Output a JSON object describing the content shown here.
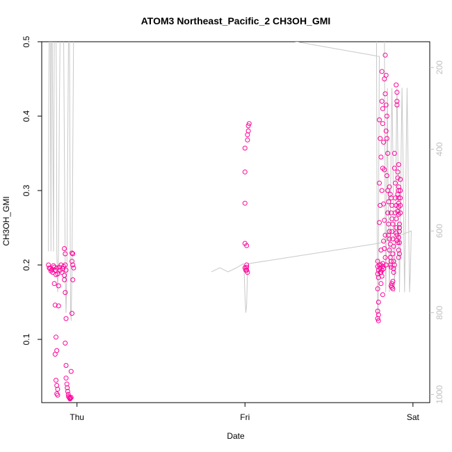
{
  "chart_data": {
    "type": "scatter",
    "title": "ATOM3 Northeast_Pacific_2 CH3OH_GMI",
    "xlabel": "Date",
    "ylabel": "CH3OH_GMI",
    "xlim": [
      -0.21,
      2.1
    ],
    "ylim": [
      0.015,
      0.5
    ],
    "x_ticks": [
      {
        "x": 0,
        "label": "Thu"
      },
      {
        "x": 1,
        "label": "Fri"
      },
      {
        "x": 2,
        "label": "Sat"
      }
    ],
    "y_ticks": [
      0.1,
      0.2,
      0.3,
      0.4,
      0.5
    ],
    "y2_ticks": [
      200,
      400,
      600,
      800,
      1000
    ],
    "y2_range": [
      137,
      1020
    ],
    "y2_color": "#bfbfbf",
    "point_color": "#ff0099",
    "line_color": "#c8c8c8",
    "grid": false,
    "series": [
      {
        "marker": "circle",
        "points": [
          [
            -0.17,
            0.2
          ],
          [
            -0.165,
            0.196
          ],
          [
            -0.16,
            0.195
          ],
          [
            -0.155,
            0.192
          ],
          [
            -0.15,
            0.194
          ],
          [
            -0.145,
            0.19
          ],
          [
            -0.14,
            0.199
          ],
          [
            -0.135,
            0.197
          ],
          [
            -0.13,
            0.193
          ],
          [
            -0.125,
            0.187
          ],
          [
            -0.12,
            0.196
          ],
          [
            -0.115,
            0.188
          ],
          [
            -0.135,
            0.175
          ],
          [
            -0.13,
            0.146
          ],
          [
            -0.125,
            0.103
          ],
          [
            -0.12,
            0.085
          ],
          [
            -0.13,
            0.08
          ],
          [
            -0.125,
            0.045
          ],
          [
            -0.12,
            0.038
          ],
          [
            -0.115,
            0.033
          ],
          [
            -0.12,
            0.027
          ],
          [
            -0.115,
            0.025
          ],
          [
            -0.11,
            0.145
          ],
          [
            -0.11,
            0.172
          ],
          [
            -0.105,
            0.197
          ],
          [
            -0.1,
            0.193
          ],
          [
            -0.095,
            0.2
          ],
          [
            -0.09,
            0.19
          ],
          [
            -0.085,
            0.195
          ],
          [
            -0.08,
            0.198
          ],
          [
            -0.075,
            0.186
          ],
          [
            -0.07,
            0.2
          ],
          [
            -0.065,
            0.193
          ],
          [
            -0.075,
            0.222
          ],
          [
            -0.07,
            0.215
          ],
          [
            -0.075,
            0.18
          ],
          [
            -0.07,
            0.163
          ],
          [
            -0.065,
            0.128
          ],
          [
            -0.07,
            0.095
          ],
          [
            -0.065,
            0.065
          ],
          [
            -0.065,
            0.048
          ],
          [
            -0.06,
            0.04
          ],
          [
            -0.058,
            0.035
          ],
          [
            -0.055,
            0.03
          ],
          [
            -0.052,
            0.026
          ],
          [
            -0.05,
            0.023
          ],
          [
            -0.045,
            0.022
          ],
          [
            -0.04,
            0.021
          ],
          [
            -0.035,
            0.022
          ],
          [
            -0.042,
            0.02
          ],
          [
            -0.035,
            0.057
          ],
          [
            -0.03,
            0.135
          ],
          [
            -0.025,
            0.18
          ],
          [
            -0.03,
            0.205
          ],
          [
            -0.025,
            0.2
          ],
          [
            -0.02,
            0.196
          ],
          [
            -0.025,
            0.215
          ],
          [
            -0.03,
            0.216
          ],
          [
            1.0,
            0.357
          ],
          [
            1.0,
            0.325
          ],
          [
            1.0,
            0.283
          ],
          [
            1.0,
            0.229
          ],
          [
            1.01,
            0.226
          ],
          [
            1.01,
            0.2
          ],
          [
            1.01,
            0.197
          ],
          [
            1.01,
            0.193
          ],
          [
            1.015,
            0.19
          ],
          [
            1.0,
            0.196
          ],
          [
            1.005,
            0.193
          ],
          [
            1.015,
            0.368
          ],
          [
            1.015,
            0.375
          ],
          [
            1.02,
            0.38
          ],
          [
            1.02,
            0.387
          ],
          [
            1.025,
            0.39
          ],
          [
            1.79,
            0.205
          ],
          [
            1.79,
            0.198
          ],
          [
            1.795,
            0.193
          ],
          [
            1.79,
            0.188
          ],
          [
            1.8,
            0.2
          ],
          [
            1.795,
            0.183
          ],
          [
            1.79,
            0.168
          ],
          [
            1.795,
            0.15
          ],
          [
            1.79,
            0.138
          ],
          [
            1.795,
            0.133
          ],
          [
            1.79,
            0.128
          ],
          [
            1.795,
            0.125
          ],
          [
            1.805,
            0.196
          ],
          [
            1.81,
            0.2
          ],
          [
            1.815,
            0.193
          ],
          [
            1.82,
            0.198
          ],
          [
            1.825,
            0.195
          ],
          [
            1.805,
            0.19
          ],
          [
            1.81,
            0.175
          ],
          [
            1.815,
            0.185
          ],
          [
            1.82,
            0.16
          ],
          [
            1.81,
            0.19
          ],
          [
            1.82,
            0.202
          ],
          [
            1.8,
            0.395
          ],
          [
            1.805,
            0.37
          ],
          [
            1.81,
            0.345
          ],
          [
            1.8,
            0.31
          ],
          [
            1.805,
            0.28
          ],
          [
            1.8,
            0.257
          ],
          [
            1.81,
            0.22
          ],
          [
            1.815,
            0.46
          ],
          [
            1.815,
            0.42
          ],
          [
            1.82,
            0.41
          ],
          [
            1.82,
            0.39
          ],
          [
            1.825,
            0.365
          ],
          [
            1.82,
            0.33
          ],
          [
            1.83,
            0.328
          ],
          [
            1.815,
            0.3
          ],
          [
            1.825,
            0.282
          ],
          [
            1.83,
            0.26
          ],
          [
            1.835,
            0.24
          ],
          [
            1.825,
            0.232
          ],
          [
            1.83,
            0.222
          ],
          [
            1.835,
            0.21
          ],
          [
            1.84,
            0.2
          ],
          [
            1.835,
            0.482
          ],
          [
            1.84,
            0.455
          ],
          [
            1.83,
            0.45
          ],
          [
            1.835,
            0.43
          ],
          [
            1.84,
            0.415
          ],
          [
            1.845,
            0.4
          ],
          [
            1.84,
            0.38
          ],
          [
            1.845,
            0.37
          ],
          [
            1.85,
            0.35
          ],
          [
            1.845,
            0.32
          ],
          [
            1.85,
            0.3
          ],
          [
            1.855,
            0.285
          ],
          [
            1.85,
            0.27
          ],
          [
            1.855,
            0.255
          ],
          [
            1.86,
            0.245
          ],
          [
            1.855,
            0.24
          ],
          [
            1.86,
            0.235
          ],
          [
            1.865,
            0.228
          ],
          [
            1.86,
            0.22
          ],
          [
            1.865,
            0.21
          ],
          [
            1.87,
            0.205
          ],
          [
            1.865,
            0.2
          ],
          [
            1.87,
            0.197
          ],
          [
            1.86,
            0.305
          ],
          [
            1.865,
            0.295
          ],
          [
            1.87,
            0.29
          ],
          [
            1.875,
            0.28
          ],
          [
            1.87,
            0.27
          ],
          [
            1.875,
            0.262
          ],
          [
            1.88,
            0.255
          ],
          [
            1.875,
            0.245
          ],
          [
            1.88,
            0.235
          ],
          [
            1.885,
            0.225
          ],
          [
            1.88,
            0.215
          ],
          [
            1.885,
            0.205
          ],
          [
            1.87,
            0.172
          ],
          [
            1.875,
            0.17
          ],
          [
            1.88,
            0.168
          ],
          [
            1.875,
            0.175
          ],
          [
            1.88,
            0.178
          ],
          [
            1.885,
            0.19
          ],
          [
            1.89,
            0.2
          ],
          [
            1.885,
            0.195
          ],
          [
            1.89,
            0.35
          ],
          [
            1.89,
            0.33
          ],
          [
            1.895,
            0.31
          ],
          [
            1.895,
            0.29
          ],
          [
            1.9,
            0.28
          ],
          [
            1.895,
            0.27
          ],
          [
            1.9,
            0.262
          ],
          [
            1.9,
            0.25
          ],
          [
            1.905,
            0.24
          ],
          [
            1.905,
            0.233
          ],
          [
            1.91,
            0.23
          ],
          [
            1.9,
            0.243
          ],
          [
            1.9,
            0.442
          ],
          [
            1.905,
            0.432
          ],
          [
            1.905,
            0.42
          ],
          [
            1.905,
            0.415
          ],
          [
            1.91,
            0.325
          ],
          [
            1.91,
            0.317
          ],
          [
            1.915,
            0.305
          ],
          [
            1.915,
            0.3
          ],
          [
            1.91,
            0.295
          ],
          [
            1.915,
            0.29
          ],
          [
            1.915,
            0.283
          ],
          [
            1.915,
            0.278
          ],
          [
            1.91,
            0.272
          ],
          [
            1.915,
            0.268
          ],
          [
            1.92,
            0.255
          ],
          [
            1.92,
            0.245
          ],
          [
            1.915,
            0.237
          ],
          [
            1.92,
            0.23
          ],
          [
            1.915,
            0.22
          ],
          [
            1.92,
            0.215
          ],
          [
            1.915,
            0.335
          ],
          [
            1.925,
            0.315
          ],
          [
            1.925,
            0.3
          ],
          [
            1.925,
            0.29
          ],
          [
            1.925,
            0.28
          ],
          [
            1.925,
            0.27
          ],
          [
            1.92,
            0.25
          ],
          [
            1.915,
            0.21
          ]
        ]
      },
      {
        "name": "",
        "axis": "right",
        "style": "line",
        "points": [
          [
            -0.17,
            650
          ],
          [
            -0.168,
            300
          ],
          [
            -0.165,
            100
          ],
          [
            -0.16,
            100
          ],
          [
            -0.158,
            300
          ],
          [
            -0.155,
            650
          ],
          [
            -0.152,
            100
          ],
          [
            -0.148,
            100
          ],
          [
            -0.145,
            300
          ],
          [
            -0.14,
            650
          ],
          [
            -0.135,
            100
          ],
          [
            -0.125,
            100
          ],
          [
            -0.122,
            300
          ],
          [
            -0.12,
            650
          ],
          [
            -0.115,
            750
          ],
          [
            -0.11,
            650
          ],
          [
            -0.105,
            300
          ],
          [
            -0.1,
            100
          ],
          [
            -0.08,
            100
          ],
          [
            -0.075,
            400
          ],
          [
            -0.07,
            700
          ],
          [
            -0.065,
            800
          ],
          [
            -0.06,
            700
          ],
          [
            -0.055,
            400
          ],
          [
            -0.05,
            100
          ],
          [
            -0.045,
            100
          ],
          [
            -0.043,
            300
          ],
          [
            -0.04,
            650
          ],
          [
            -0.038,
            800
          ],
          [
            -0.035,
            820
          ],
          [
            -0.03,
            700
          ],
          [
            -0.025,
            400
          ],
          [
            -0.02,
            100
          ],
          [
            -0.01,
            100
          ],
          [
            0.8,
            100
          ],
          [
            1.8,
            173
          ],
          [
            1.797,
            400
          ],
          [
            1.795,
            700
          ],
          [
            1.793,
            800
          ],
          [
            1.79,
            820
          ],
          [
            1.788,
            700
          ],
          [
            1.785,
            400
          ],
          [
            1.783,
            100
          ],
          [
            1.83,
            100
          ],
          [
            1.833,
            400
          ],
          [
            1.835,
            600
          ],
          [
            1.838,
            750
          ],
          [
            1.84,
            700
          ],
          [
            1.845,
            400
          ],
          [
            1.848,
            250
          ],
          [
            1.85,
            400
          ],
          [
            1.855,
            600
          ],
          [
            1.86,
            750
          ],
          [
            1.865,
            600
          ],
          [
            1.87,
            400
          ],
          [
            1.875,
            250
          ],
          [
            1.88,
            400
          ],
          [
            1.885,
            600
          ],
          [
            1.89,
            750
          ],
          [
            1.895,
            600
          ],
          [
            1.9,
            400
          ],
          [
            1.905,
            250
          ],
          [
            1.91,
            400
          ],
          [
            1.915,
            600
          ],
          [
            1.92,
            750
          ],
          [
            1.925,
            600
          ],
          [
            1.93,
            400
          ],
          [
            1.935,
            250
          ],
          [
            1.94,
            400
          ],
          [
            1.945,
            600
          ],
          [
            1.95,
            750
          ],
          [
            1.955,
            600
          ],
          [
            1.96,
            400
          ],
          [
            1.965,
            250
          ],
          [
            1.97,
            400
          ],
          [
            1.975,
            600
          ],
          [
            1.98,
            750
          ],
          [
            1.985,
            700
          ],
          [
            1.99,
            600
          ],
          [
            1.8,
            630
          ],
          [
            1.02,
            680
          ],
          [
            1.015,
            700
          ],
          [
            1.01,
            780
          ],
          [
            1.005,
            800
          ],
          [
            1.0,
            760
          ],
          [
            0.995,
            700
          ],
          [
            0.99,
            680
          ],
          [
            0.95,
            690
          ],
          [
            0.9,
            700
          ],
          [
            0.85,
            690
          ],
          [
            0.8,
            700
          ]
        ]
      }
    ]
  }
}
